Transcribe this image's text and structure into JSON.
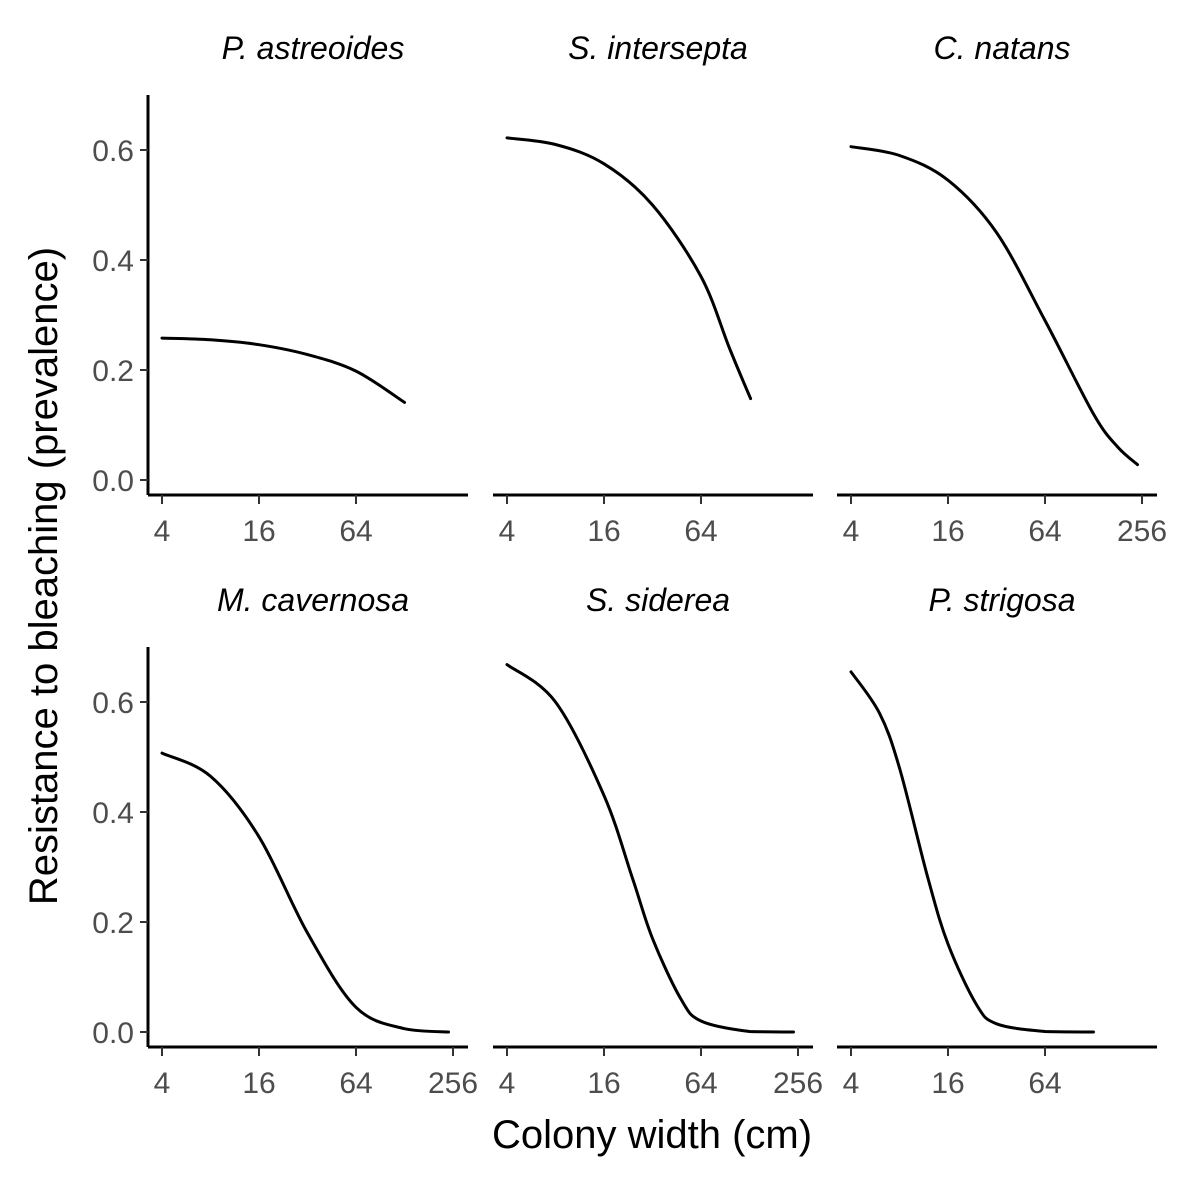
{
  "chart_data": {
    "type": "line",
    "layout": "facet 2x3",
    "xlabel": "Colony width (cm)",
    "ylabel": "Resistance to bleaching (prevalence)",
    "x_scale": "log2",
    "x_ticks": [
      4,
      16,
      64,
      256
    ],
    "x_tick_labels": [
      "4",
      "16",
      "64",
      "256"
    ],
    "y_ticks": [
      0.0,
      0.2,
      0.4,
      0.6
    ],
    "y_tick_labels": [
      "0.0",
      "0.2",
      "0.4",
      "0.6"
    ],
    "xlim": [
      3.5,
      330
    ],
    "ylim": [
      -0.03,
      0.7
    ],
    "grid": false,
    "legend": "none",
    "line_color": "#000000",
    "panels": [
      {
        "title": "P. astreoides",
        "x_tick_labels": [
          "4",
          "16",
          "64"
        ],
        "x": [
          4,
          8,
          16,
          32,
          64,
          128
        ],
        "y": [
          0.258,
          0.255,
          0.246,
          0.228,
          0.198,
          0.141
        ]
      },
      {
        "title": "S. intersepta",
        "x_tick_labels": [
          "4",
          "16",
          "64"
        ],
        "x": [
          4,
          8,
          16,
          32,
          64,
          96,
          130
        ],
        "y": [
          0.622,
          0.61,
          0.575,
          0.5,
          0.37,
          0.24,
          0.148
        ]
      },
      {
        "title": "C. natans",
        "x_tick_labels": [
          "4",
          "16",
          "64",
          "256"
        ],
        "x": [
          4,
          8,
          16,
          32,
          64,
          128,
          181,
          240
        ],
        "y": [
          0.606,
          0.59,
          0.545,
          0.45,
          0.29,
          0.12,
          0.06,
          0.028
        ]
      },
      {
        "title": "M. cavernosa",
        "x_tick_labels": [
          "4",
          "16",
          "64",
          "256"
        ],
        "x": [
          4,
          8,
          16,
          32,
          64,
          128,
          240
        ],
        "y": [
          0.507,
          0.465,
          0.355,
          0.18,
          0.045,
          0.006,
          0.0
        ]
      },
      {
        "title": "S. siderea",
        "x_tick_labels": [
          "4",
          "16",
          "64",
          "256"
        ],
        "x": [
          4,
          8,
          16,
          24,
          32,
          48,
          64,
          128,
          240
        ],
        "y": [
          0.668,
          0.6,
          0.43,
          0.28,
          0.17,
          0.06,
          0.02,
          0.001,
          0.0
        ]
      },
      {
        "title": "P. strigosa",
        "x_tick_labels": [
          "4",
          "16",
          "64"
        ],
        "x": [
          4,
          6,
          8,
          12,
          16,
          24,
          32,
          64,
          128
        ],
        "y": [
          0.655,
          0.58,
          0.48,
          0.28,
          0.16,
          0.05,
          0.015,
          0.001,
          0.0
        ]
      }
    ]
  }
}
